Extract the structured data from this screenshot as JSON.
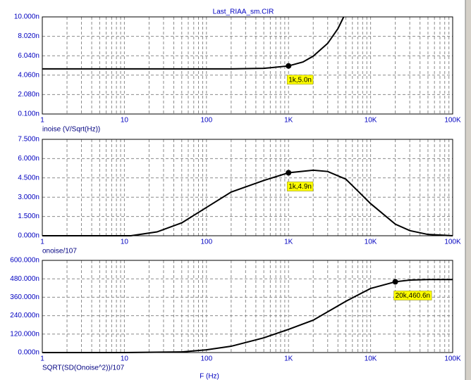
{
  "chart_data": [
    {
      "type": "line",
      "title": "Last_RIAA_sm.CIR",
      "ylabel": "inoise (V/Sqrt(Hz))",
      "x": [
        1,
        2,
        5,
        10,
        20,
        50,
        100,
        200,
        500,
        1000,
        1500,
        2000,
        3000,
        4000,
        4700
      ],
      "series": [
        {
          "color": "#000000",
          "values": [
            4.7,
            4.7,
            4.7,
            4.7,
            4.7,
            4.7,
            4.7,
            4.7,
            4.75,
            5.0,
            5.4,
            6.0,
            7.3,
            8.8,
            10.0
          ]
        }
      ],
      "xlim": [
        1,
        100000
      ],
      "log_x": true,
      "xticks": [
        1,
        10,
        100,
        {
          "value": 1000,
          "label": "1K"
        },
        {
          "value": 10000,
          "label": "10K"
        },
        {
          "value": 100000,
          "label": "100K"
        }
      ],
      "ylim": [
        0.1,
        10
      ],
      "yticks": [
        {
          "value": 10,
          "label": "10.000n"
        },
        {
          "value": 8.02,
          "label": "8.020n"
        },
        {
          "value": 6.04,
          "label": "6.040n"
        },
        {
          "value": 4.06,
          "label": "4.060n"
        },
        {
          "value": 2.08,
          "label": "2.080n"
        },
        {
          "value": 0.1,
          "label": "0.100n"
        }
      ],
      "grid": true,
      "minor_grid": true,
      "annotations": [
        {
          "x": 1000,
          "y": 5.0,
          "label": "1k,5.0n"
        }
      ]
    },
    {
      "type": "line",
      "ylabel": "onoise/107",
      "x": [
        1,
        5,
        12,
        25,
        50,
        100,
        200,
        500,
        1000,
        2000,
        3000,
        5000,
        10000,
        20000,
        30000,
        50000,
        100000
      ],
      "series": [
        {
          "color": "#000000",
          "values": [
            0,
            0,
            0,
            0.3,
            1.0,
            2.2,
            3.4,
            4.3,
            4.9,
            5.1,
            5.0,
            4.4,
            2.5,
            0.9,
            0.4,
            0.1,
            0
          ]
        }
      ],
      "xlim": [
        1,
        100000
      ],
      "log_x": true,
      "xticks": [
        1,
        10,
        100,
        {
          "value": 1000,
          "label": "1K"
        },
        {
          "value": 10000,
          "label": "10K"
        },
        {
          "value": 100000,
          "label": "100K"
        }
      ],
      "ylim": [
        0,
        7.5
      ],
      "yticks": [
        {
          "value": 7.5,
          "label": "7.500n"
        },
        {
          "value": 6,
          "label": "6.000n"
        },
        {
          "value": 4.5,
          "label": "4.500n"
        },
        {
          "value": 3,
          "label": "3.000n"
        },
        {
          "value": 1.5,
          "label": "1.500n"
        },
        {
          "value": 0,
          "label": "0.000n"
        }
      ],
      "grid": true,
      "minor_grid": true,
      "annotations": [
        {
          "x": 1000,
          "y": 4.9,
          "label": "1k,4.9n"
        }
      ]
    },
    {
      "type": "line",
      "ylabel": "SQRT(SD(Onoise^2))/107",
      "xlabel": "F (Hz)",
      "x": [
        1,
        10,
        50,
        100,
        200,
        500,
        1000,
        2000,
        5000,
        10000,
        20000,
        30000,
        50000,
        100000
      ],
      "series": [
        {
          "color": "#000000",
          "values": [
            0,
            0,
            4,
            18,
            41,
            96,
            151,
            211,
            334,
            417,
            460.6,
            472,
            475,
            475
          ]
        }
      ],
      "xlim": [
        1,
        100000
      ],
      "log_x": true,
      "xticks": [
        1,
        10,
        100,
        {
          "value": 1000,
          "label": "1K"
        },
        {
          "value": 10000,
          "label": "10K"
        },
        {
          "value": 100000,
          "label": "100K"
        }
      ],
      "ylim": [
        0,
        600
      ],
      "yticks": [
        {
          "value": 600,
          "label": "600.000n"
        },
        {
          "value": 480,
          "label": "480.000n"
        },
        {
          "value": 360,
          "label": "360.000n"
        },
        {
          "value": 240,
          "label": "240.000n"
        },
        {
          "value": 120,
          "label": "120.000n"
        },
        {
          "value": 0,
          "label": "0.000n"
        }
      ],
      "grid": true,
      "minor_grid": true,
      "annotations": [
        {
          "x": 20000,
          "y": 460.6,
          "label": "20k,460.6n"
        }
      ]
    }
  ]
}
